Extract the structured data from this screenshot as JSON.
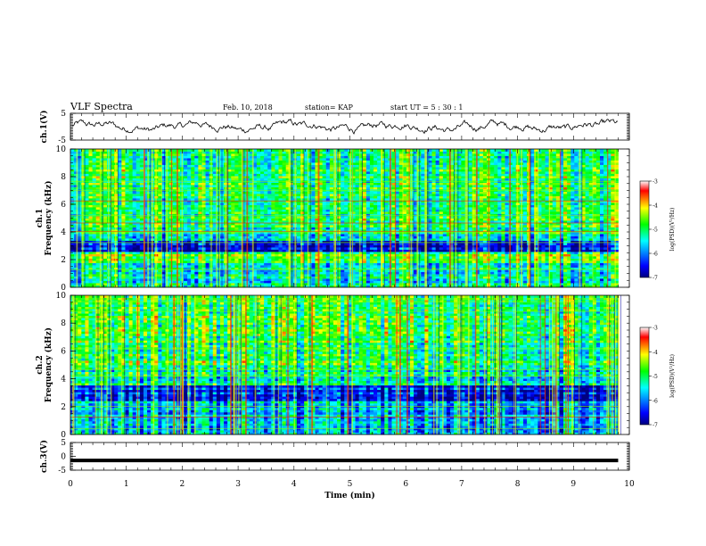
{
  "header": {
    "title": "VLF Spectra",
    "date": "Feb. 10, 2018",
    "station": "station= KAP",
    "start": "start  UT  =   5 : 30 : 1"
  },
  "chart_data": [
    {
      "panel": "ch1-waveform",
      "type": "line",
      "ylabel": "ch.1(V)",
      "ylim": [
        -5,
        5
      ],
      "yticks": [
        "5",
        "-5"
      ],
      "xlim": [
        0,
        10
      ],
      "series_color": "#000000",
      "data_end_x": 9.8
    },
    {
      "panel": "ch1-spectrogram",
      "type": "heatmap",
      "ylabel_line1": "ch.1",
      "ylabel_line2": "Frequency (kHz)",
      "ylim": [
        0,
        10
      ],
      "yticks": [
        "0",
        "2",
        "4",
        "6",
        "8",
        "10"
      ],
      "xlim": [
        0,
        10
      ],
      "data_end_x": 9.8,
      "colorbar": {
        "label": "log(PSD)(V²/Hz)",
        "range": [
          -7,
          -3
        ],
        "ticks": [
          "-3",
          "-4",
          "-5",
          "-6",
          "-7"
        ],
        "colormap": [
          "#000080",
          "#0000ff",
          "#00ffff",
          "#00ff00",
          "#ffff00",
          "#ff0000",
          "#ffffff"
        ]
      }
    },
    {
      "panel": "ch2-spectrogram",
      "type": "heatmap",
      "ylabel_line1": "ch.2",
      "ylabel_line2": "Frequency (kHz)",
      "ylim": [
        0,
        10
      ],
      "yticks": [
        "0",
        "2",
        "4",
        "6",
        "8",
        "10"
      ],
      "xlim": [
        0,
        10
      ],
      "data_end_x": 9.8,
      "colorbar": {
        "label": "log(PSD)(V²/Hz)",
        "range": [
          -7,
          -3
        ],
        "ticks": [
          "-3",
          "-4",
          "-5",
          "-6",
          "-7"
        ],
        "colormap": [
          "#000080",
          "#0000ff",
          "#00ffff",
          "#00ff00",
          "#ffff00",
          "#ff0000",
          "#ffffff"
        ]
      }
    },
    {
      "panel": "ch3-waveform",
      "type": "line",
      "ylabel": "ch.3(V)",
      "ylim": [
        -5,
        5
      ],
      "yticks": [
        "5",
        "0",
        "-5"
      ],
      "xlim": [
        0,
        10
      ],
      "constant_value": -1.5,
      "data_end_x": 9.8,
      "xlabel": "Time  (min)",
      "xticks": [
        "0",
        "1",
        "2",
        "3",
        "4",
        "5",
        "6",
        "7",
        "8",
        "9",
        "10"
      ]
    }
  ]
}
